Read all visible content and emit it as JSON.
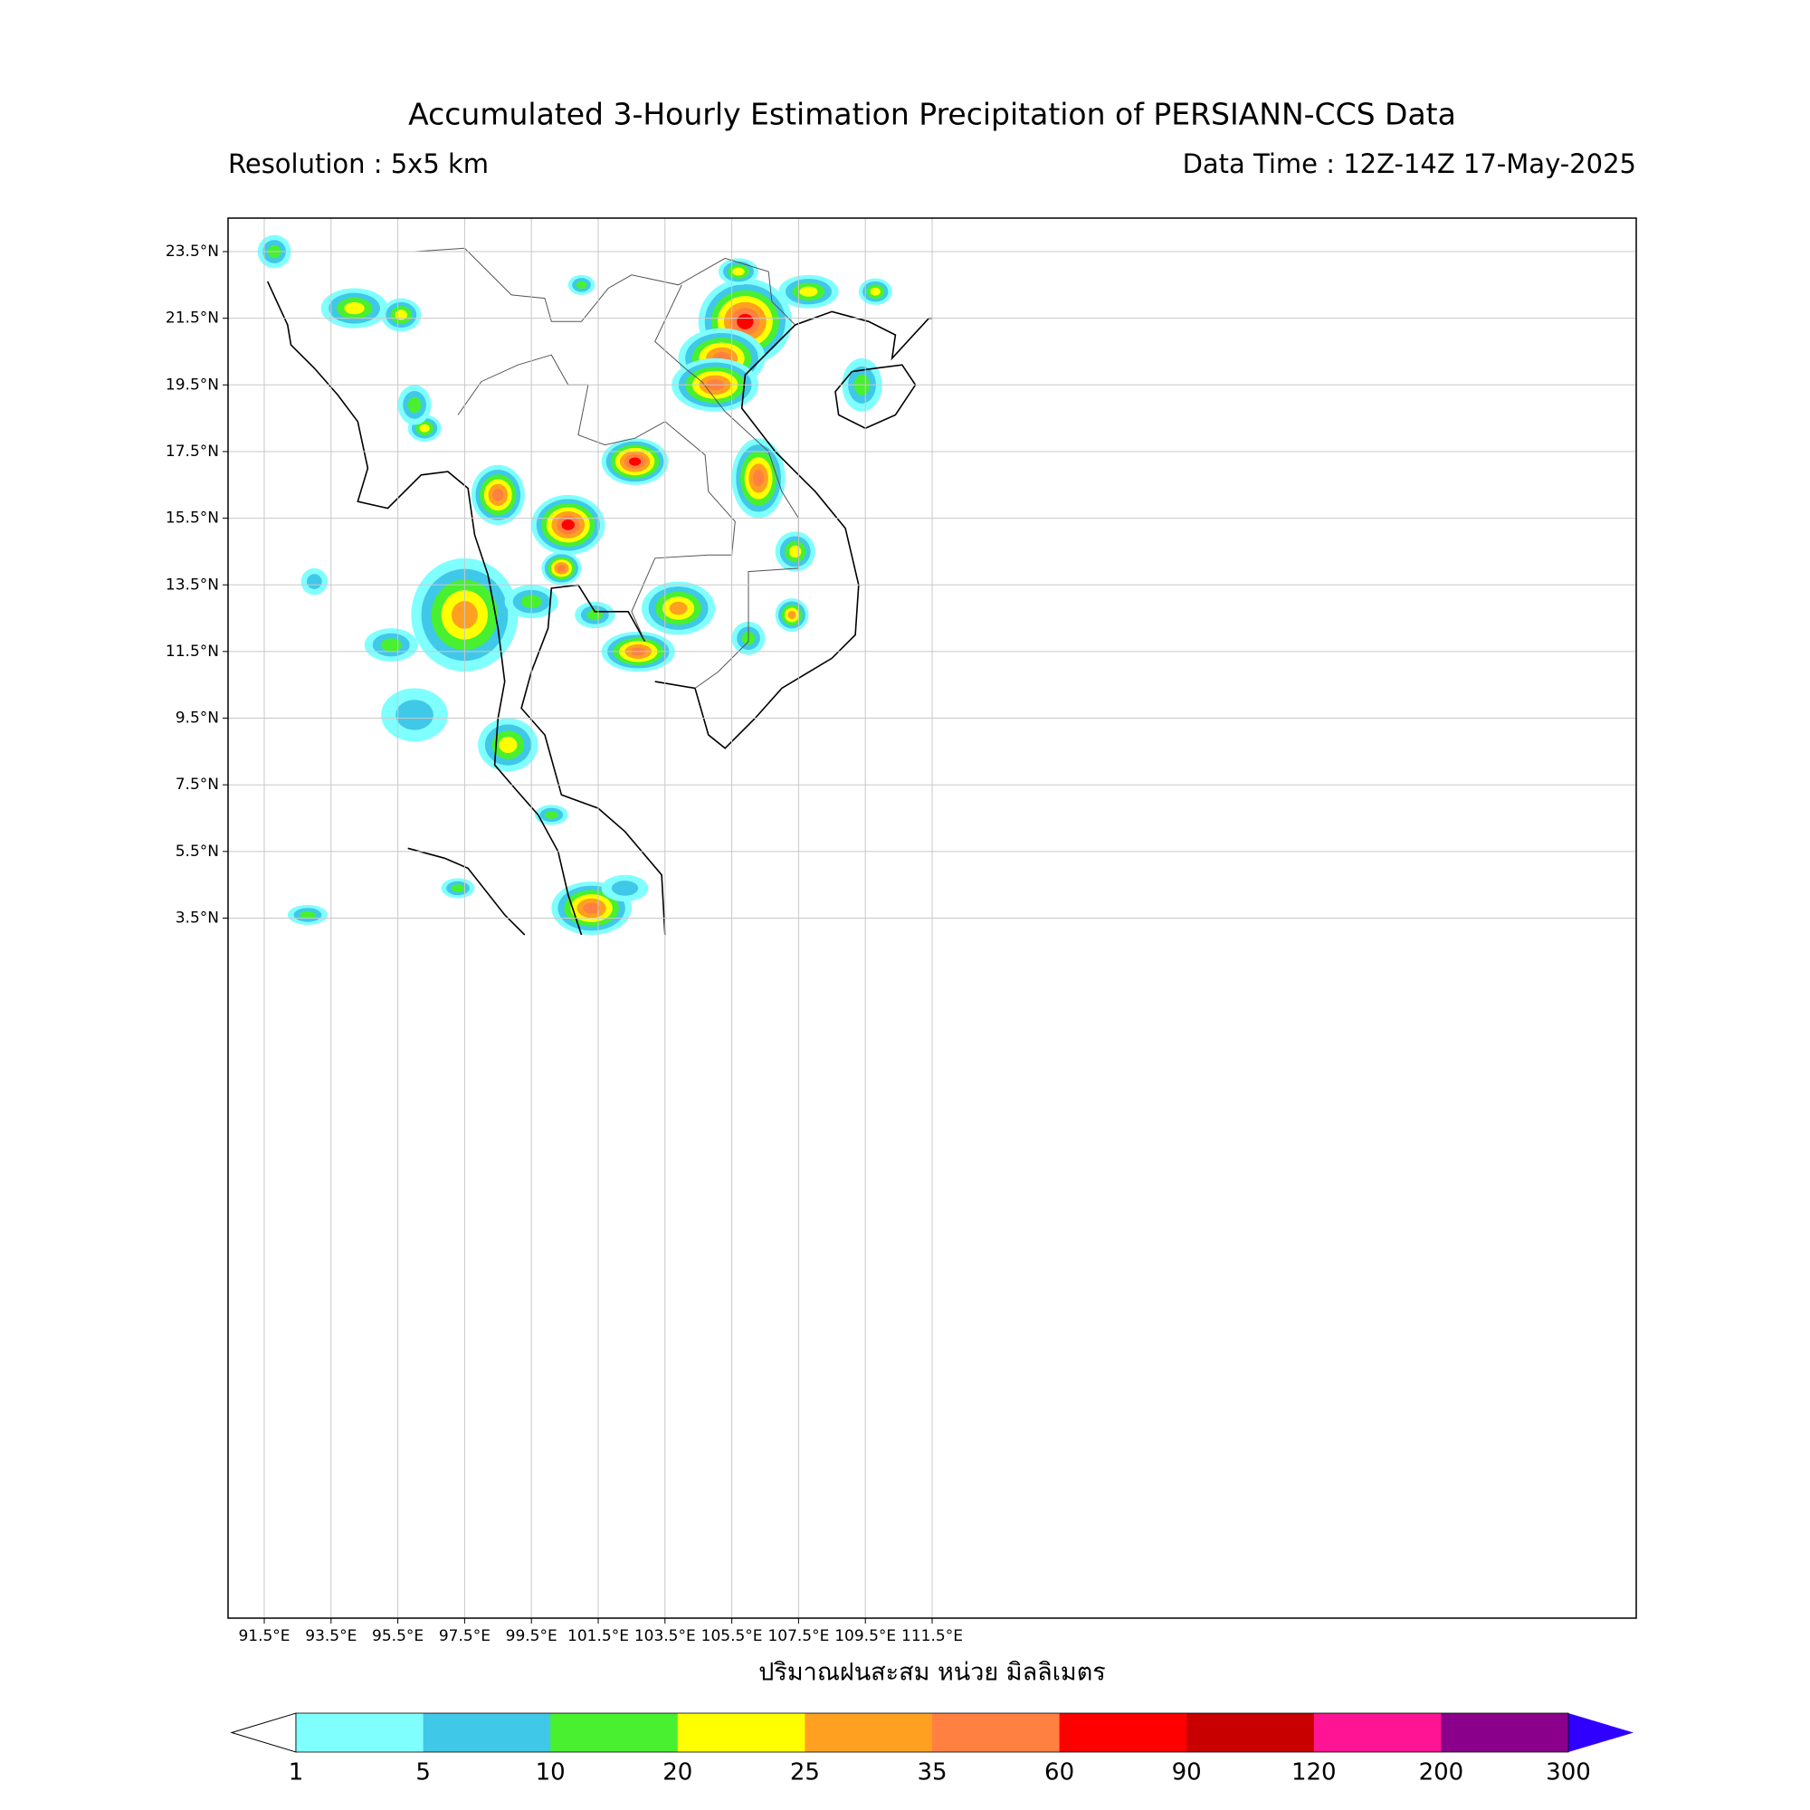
{
  "title": "Accumulated 3-Hourly Estimation Precipitation of PERSIANN-CCS Data",
  "resolution": "Resolution : 5x5 km",
  "data_time": "Data Time : 12Z-14Z 17-May-2025",
  "map": {
    "lat_labels": [
      "23.5°N",
      "21.5°N",
      "19.5°N",
      "17.5°N",
      "15.5°N",
      "13.5°N",
      "11.5°N",
      "9.5°N",
      "7.5°N",
      "5.5°N",
      "3.5°N"
    ],
    "lon_labels": [
      "91.5°E",
      "93.5°E",
      "95.5°E",
      "97.5°E",
      "99.5°E",
      "101.5°E",
      "103.5°E",
      "105.5°E",
      "107.5°E",
      "109.5°E",
      "111.5°E"
    ],
    "xlabel": "ปริมาณฝนสะสม หน่วย มิลลิเมตร"
  },
  "colorbar": {
    "levels": [
      1,
      5,
      10,
      20,
      25,
      35,
      60,
      90,
      120,
      200,
      300
    ],
    "colors": [
      "#80ffff",
      "#40c8e8",
      "#48f030",
      "#ffff00",
      "#ffa020",
      "#ff8040",
      "#ff0000",
      "#c80000",
      "#ff1493",
      "#8b008b"
    ],
    "over_color": "#3000ff",
    "under_color": "#ffffff"
  }
}
